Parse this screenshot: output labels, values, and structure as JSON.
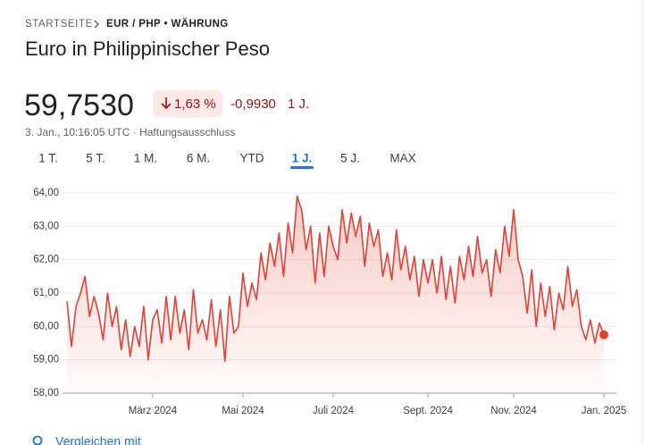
{
  "breadcrumb": {
    "home": "STARTSEITE",
    "current": "EUR / PHP • WÄHRUNG"
  },
  "title": "Euro in Philippinischer Peso",
  "price": "59,7530",
  "change_percent": "1,63 %",
  "change_abs": "-0,9930",
  "change_period": "1 J.",
  "timestamp": "3. Jan., 10:16:05 UTC · Haftungsausschluss",
  "tabs": [
    "1 T.",
    "5 T.",
    "1 M.",
    "6 M.",
    "YTD",
    "1 J.",
    "5 J.",
    "MAX"
  ],
  "selected_tab": 5,
  "compare": "Vergleichen mit",
  "chart_data": {
    "type": "line",
    "color": "#e34133",
    "categories": [
      null,
      null,
      null,
      null,
      null,
      null,
      null,
      null,
      null,
      null,
      null,
      null,
      null,
      null,
      null,
      null,
      null,
      null,
      null,
      "März 2024",
      null,
      null,
      null,
      null,
      null,
      null,
      null,
      null,
      null,
      null,
      null,
      null,
      null,
      null,
      null,
      null,
      null,
      null,
      null,
      "Mai 2024",
      null,
      null,
      null,
      null,
      null,
      null,
      null,
      null,
      null,
      null,
      null,
      null,
      null,
      null,
      null,
      null,
      null,
      null,
      null,
      "Juli 2024",
      null,
      null,
      null,
      null,
      null,
      null,
      null,
      null,
      null,
      null,
      null,
      null,
      null,
      null,
      null,
      null,
      null,
      null,
      null,
      null,
      "Sept. 2024",
      null,
      null,
      null,
      null,
      null,
      null,
      null,
      null,
      null,
      null,
      null,
      null,
      null,
      null,
      null,
      null,
      null,
      null,
      "Nov. 2024",
      null,
      null,
      null,
      null,
      null,
      null,
      null,
      null,
      null,
      null,
      null,
      null,
      null,
      null,
      null,
      null,
      null,
      null,
      null,
      "Jan. 2025"
    ],
    "values": [
      60.75,
      59.4,
      60.6,
      61.0,
      61.5,
      60.3,
      60.9,
      60.4,
      59.6,
      61.0,
      60.0,
      60.6,
      59.3,
      60.2,
      59.1,
      60.0,
      59.4,
      60.6,
      59.0,
      60.2,
      60.5,
      59.5,
      60.9,
      59.6,
      60.9,
      59.8,
      60.5,
      59.3,
      61.1,
      59.8,
      60.2,
      59.6,
      60.8,
      59.4,
      60.5,
      58.95,
      60.9,
      59.8,
      60.0,
      61.6,
      60.6,
      61.3,
      60.8,
      62.2,
      61.4,
      62.5,
      61.8,
      62.8,
      61.5,
      63.1,
      62.2,
      63.9,
      63.5,
      62.3,
      63.0,
      61.3,
      62.8,
      61.5,
      63.0,
      62.4,
      62.0,
      63.5,
      62.5,
      63.4,
      62.7,
      63.3,
      61.8,
      63.1,
      62.4,
      62.9,
      61.5,
      62.2,
      61.4,
      62.9,
      61.7,
      62.4,
      61.4,
      62.1,
      60.9,
      62.0,
      61.3,
      62.0,
      61.0,
      62.1,
      60.8,
      61.8,
      60.7,
      62.1,
      61.4,
      62.4,
      61.5,
      62.7,
      61.6,
      62.0,
      60.9,
      62.3,
      61.6,
      63.0,
      62.1,
      63.5,
      62.0,
      61.5,
      60.4,
      61.7,
      60.0,
      61.3,
      60.3,
      61.2,
      59.9,
      61.0,
      60.5,
      61.8,
      60.6,
      61.1,
      60.0,
      59.6,
      60.2,
      59.5,
      60.1,
      59.75
    ],
    "ylim": [
      58,
      64
    ],
    "yticks": [
      {
        "value": 58,
        "label": "58,00"
      },
      {
        "value": 59,
        "label": "59,00"
      },
      {
        "value": 60,
        "label": "60,00"
      },
      {
        "value": 61,
        "label": "61,00"
      },
      {
        "value": 62,
        "label": "62,00"
      },
      {
        "value": 63,
        "label": "63,00"
      },
      {
        "value": 64,
        "label": "64,00"
      }
    ],
    "grid": true
  }
}
